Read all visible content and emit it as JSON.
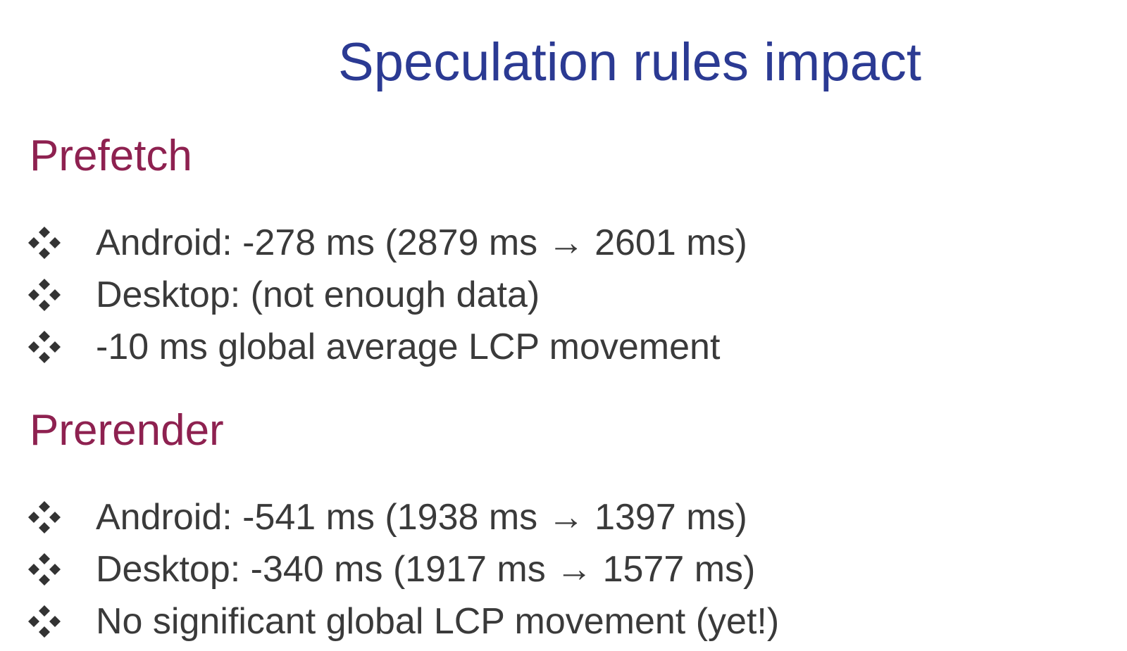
{
  "slide": {
    "title": "Speculation rules impact",
    "colors": {
      "title": "#2b3a93",
      "heading": "#8e2150",
      "body_text": "#3a3a3a",
      "bullet": "#333333"
    },
    "sections": [
      {
        "heading": "Prefetch",
        "bullet_icon": "four-diamond-bullet-icon",
        "items": [
          "Android: -278 ms (2879 ms → 2601 ms)",
          "Desktop: (not enough data)",
          "-10 ms global average LCP movement"
        ]
      },
      {
        "heading": "Prerender",
        "bullet_icon": "four-diamond-bullet-icon",
        "items": [
          "Android: -541 ms (1938 ms → 1397 ms)",
          "Desktop: -340 ms (1917 ms → 1577 ms)",
          "No significant global LCP movement (yet!)"
        ]
      }
    ]
  }
}
